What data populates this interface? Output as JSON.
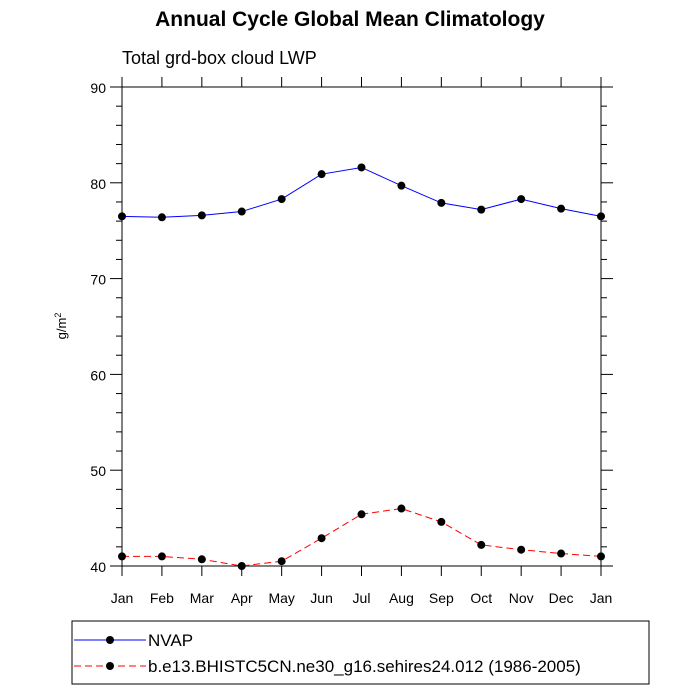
{
  "chart_data": {
    "type": "line",
    "title": "Annual Cycle Global Mean Climatology",
    "subtitle": "Total grd-box cloud LWP",
    "xlabel": "",
    "ylabel": "g/m",
    "ylabel_sup": "2",
    "categories": [
      "Jan",
      "Feb",
      "Mar",
      "Apr",
      "May",
      "Jun",
      "Jul",
      "Aug",
      "Sep",
      "Oct",
      "Nov",
      "Dec",
      "Jan"
    ],
    "ylim": [
      40,
      90
    ],
    "yticks": [
      40,
      50,
      60,
      70,
      80,
      90
    ],
    "series": [
      {
        "name": "NVAP",
        "color": "#0000ff",
        "dash": "solid",
        "values": [
          76.5,
          76.4,
          76.6,
          77.0,
          78.3,
          80.9,
          81.6,
          79.7,
          77.9,
          77.2,
          78.3,
          77.3,
          76.5
        ]
      },
      {
        "name": "b.e13.BHISTC5CN.ne30_g16.sehires24.012 (1986-2005)",
        "color": "#ff0000",
        "dash": "dashed",
        "values": [
          41.0,
          41.0,
          40.7,
          40.0,
          40.5,
          42.9,
          45.4,
          46.0,
          44.6,
          42.2,
          41.7,
          41.3,
          41.0
        ]
      }
    ],
    "legend_position": "bottom"
  }
}
